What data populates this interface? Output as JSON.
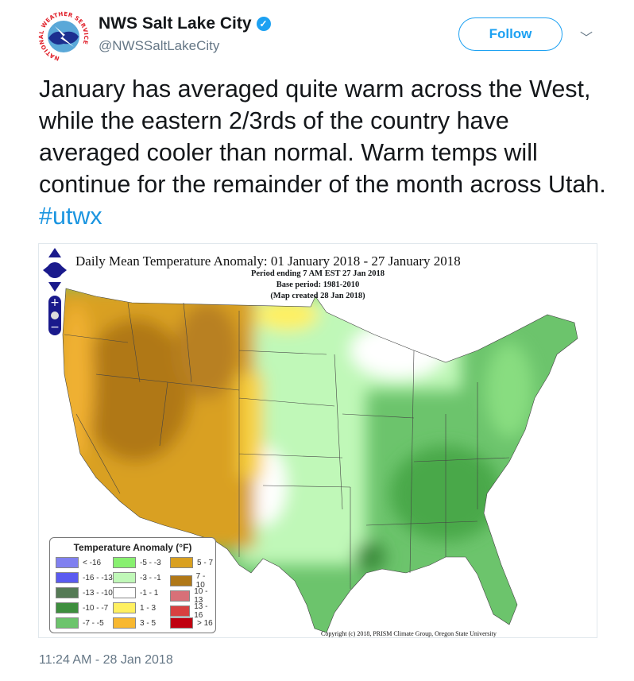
{
  "author": {
    "name": "NWS Salt Lake City",
    "handle": "@NWSSaltLakeCity",
    "verified": true,
    "avatar_text": "NATIONAL WEATHER SERVICE"
  },
  "follow_label": "Follow",
  "tweet": {
    "text": "January has averaged quite warm across the West, while the eastern 2/3rds of the country have averaged cooler than normal. Warm temps will continue for the remainder of the month across Utah. ",
    "hashtag": "#utwx"
  },
  "map": {
    "title": "Daily Mean Temperature Anomaly: 01 January 2018 - 27 January 2018",
    "period": "Period ending 7 AM EST 27 Jan 2018",
    "base": "Base period: 1981-2010",
    "created": "(Map created 28 Jan 2018)",
    "copyright": "Copyright (c) 2018, PRISM Climate Group, Oregon State University",
    "legend": {
      "title": "Temperature Anomaly (°F)",
      "items": [
        {
          "label": "< -16",
          "color": "#8080f0"
        },
        {
          "label": "-16 - -13",
          "color": "#5a5af0"
        },
        {
          "label": "-13 - -10",
          "color": "#557a55"
        },
        {
          "label": "-10 - -7",
          "color": "#3e8e3e"
        },
        {
          "label": "-7 - -5",
          "color": "#6cc46c"
        },
        {
          "label": "-5 - -3",
          "color": "#88f070"
        },
        {
          "label": "-3 - -1",
          "color": "#c0f8b8"
        },
        {
          "label": "-1 - 1",
          "color": "#ffffff"
        },
        {
          "label": "1 - 3",
          "color": "#fff060"
        },
        {
          "label": "3 - 5",
          "color": "#f8b830"
        },
        {
          "label": "5 - 7",
          "color": "#d9a020"
        },
        {
          "label": "7 - 10",
          "color": "#b07818"
        },
        {
          "label": "10 - 13",
          "color": "#d87078"
        },
        {
          "label": "13 - 16",
          "color": "#d84040"
        },
        {
          "label": "> 16",
          "color": "#c00010"
        }
      ]
    }
  },
  "timestamp": "11:24 AM - 28 Jan 2018"
}
